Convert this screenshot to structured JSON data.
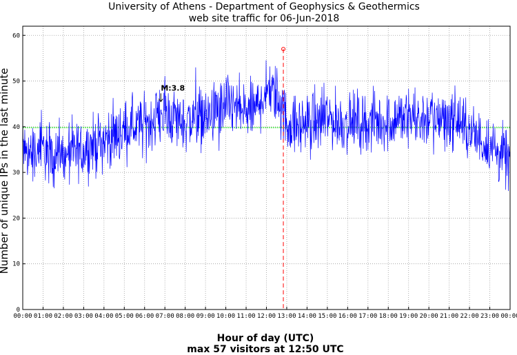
{
  "chart_data": {
    "type": "line",
    "title_line1": "University of Athens - Department of Geophysics & Geothermics",
    "title_line2": "web site traffic for 06-Jun-2018",
    "xlabel": "Hour of day (UTC)",
    "ylabel": "Number of unique IPs in the last minute",
    "subtitle": "max 57 visitors at 12:50 UTC",
    "xlim": [
      0,
      24
    ],
    "ylim": [
      0,
      62
    ],
    "yticks": [
      0,
      10,
      20,
      30,
      40,
      50,
      60
    ],
    "xtick_labels": [
      "00:00",
      "01:00",
      "02:00",
      "03:00",
      "04:00",
      "05:00",
      "06:00",
      "07:00",
      "08:00",
      "09:00",
      "10:00",
      "11:00",
      "12:00",
      "13:00",
      "14:00",
      "15:00",
      "16:00",
      "17:00",
      "18:00",
      "19:00",
      "20:00",
      "21:00",
      "22:00",
      "23:00",
      "00:00"
    ],
    "grid": true,
    "series": [
      {
        "color": "#0000ff",
        "hourly_mean": [
          [
            0,
            35
          ],
          [
            0.5,
            34
          ],
          [
            1,
            35
          ],
          [
            1.5,
            34
          ],
          [
            2,
            33
          ],
          [
            2.5,
            34
          ],
          [
            3,
            35
          ],
          [
            3.5,
            36
          ],
          [
            4,
            37
          ],
          [
            4.5,
            38
          ],
          [
            5,
            39
          ],
          [
            5.5,
            40
          ],
          [
            6,
            40
          ],
          [
            6.5,
            42
          ],
          [
            7,
            43
          ],
          [
            7.5,
            42
          ],
          [
            8,
            41
          ],
          [
            8.5,
            42
          ],
          [
            9,
            42
          ],
          [
            9.5,
            43
          ],
          [
            10,
            45
          ],
          [
            10.5,
            44
          ],
          [
            11,
            43
          ],
          [
            11.5,
            44
          ],
          [
            12,
            48
          ],
          [
            12.5,
            47
          ],
          [
            13,
            41
          ],
          [
            13.5,
            40
          ],
          [
            14,
            41
          ],
          [
            14.5,
            41
          ],
          [
            15,
            42
          ],
          [
            15.5,
            41
          ],
          [
            16,
            41
          ],
          [
            16.5,
            41
          ],
          [
            17,
            41
          ],
          [
            17.5,
            41
          ],
          [
            18,
            41
          ],
          [
            18.5,
            42
          ],
          [
            19,
            42
          ],
          [
            19.5,
            42
          ],
          [
            20,
            42
          ],
          [
            20.5,
            42
          ],
          [
            21,
            42
          ],
          [
            21.5,
            41
          ],
          [
            22,
            39
          ],
          [
            22.5,
            37
          ],
          [
            23,
            36
          ],
          [
            23.5,
            34
          ],
          [
            24,
            33
          ]
        ],
        "noise_amplitude": 4
      }
    ],
    "mean_line": {
      "value": 39.8,
      "color": "#00dd00"
    },
    "max_marker": {
      "x": 12.833,
      "y": 57,
      "color": "#ff0000"
    },
    "annotation": {
      "text": "M:3.8",
      "x": 6.8,
      "y": 45.5
    }
  }
}
